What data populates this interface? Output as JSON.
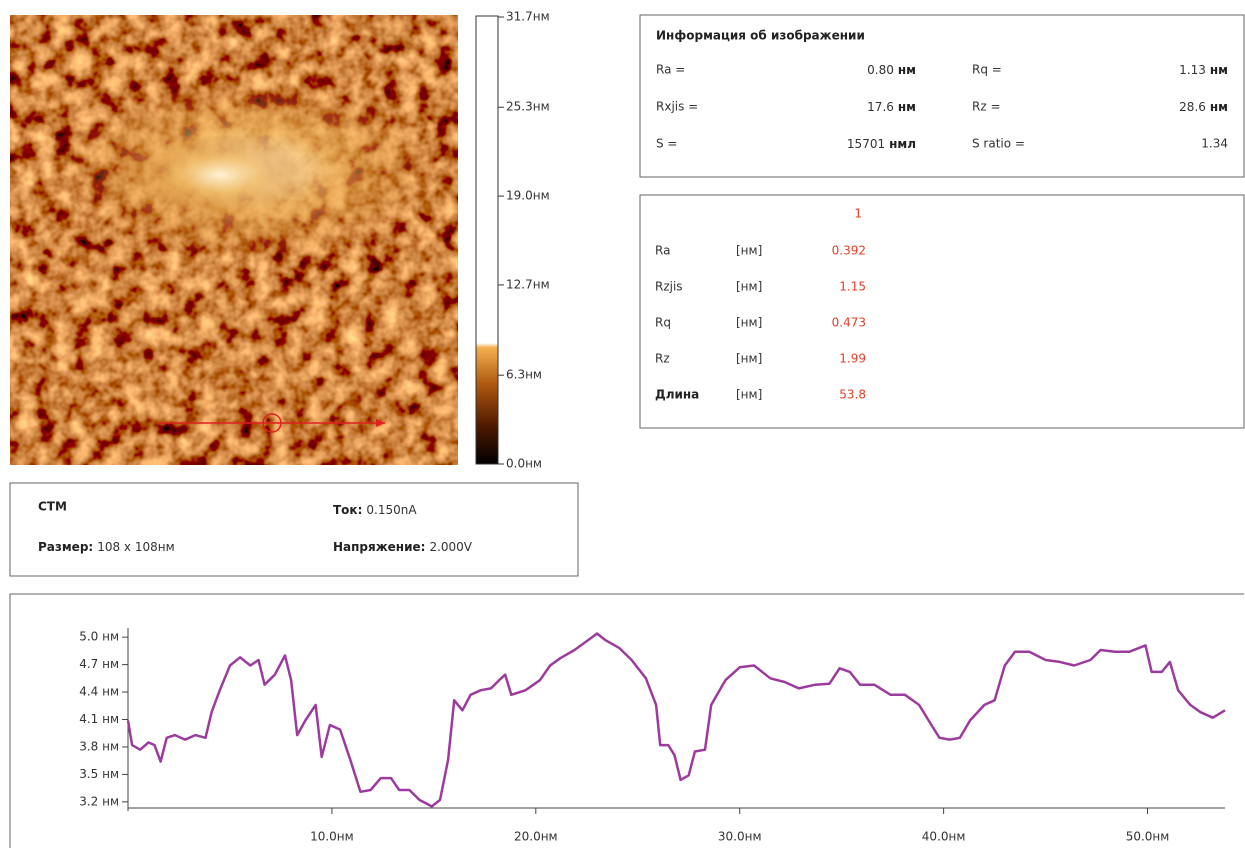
{
  "image_info": {
    "title": "Информация об изображении",
    "rows": [
      [
        {
          "label": "Ra =",
          "value": "0.80",
          "unit": "нм"
        },
        {
          "label": "Rq =",
          "value": "1.13",
          "unit": "нм"
        }
      ],
      [
        {
          "label": "Rxjis =",
          "value": "17.6",
          "unit": "нм"
        },
        {
          "label": "Rz =",
          "value": "28.6",
          "unit": "нм"
        }
      ],
      [
        {
          "label": "S =",
          "value": "15701",
          "unit": "нмл"
        },
        {
          "label": "S ratio =",
          "value": "1.34"
        }
      ]
    ]
  },
  "profile_stats": {
    "column": "1",
    "rows": [
      {
        "name": "Ra",
        "unit": "[нм]",
        "value": "0.392"
      },
      {
        "name": "Rzjis",
        "unit": "[нм]",
        "value": "1.15"
      },
      {
        "name": "Rq",
        "unit": "[нм]",
        "value": "0.473"
      },
      {
        "name": "Rz",
        "unit": "[нм]",
        "value": "1.99"
      },
      {
        "name": "Длина",
        "unit": "[нм]",
        "value": "53.8"
      }
    ]
  },
  "scan_info": {
    "mode": "СТМ",
    "current_label": "Ток:",
    "current": "0.150nA",
    "size_label": "Размер:",
    "size": "108 x 108нм",
    "voltage_label": "Напряжение:",
    "voltage": "2.000V"
  },
  "colorbar": {
    "clim": [
      0,
      31.7
    ],
    "ticks": [
      {
        "value": 31.7,
        "label": "31.7нм"
      },
      {
        "value": 25.3,
        "label": "25.3нм"
      },
      {
        "value": 19.0,
        "label": "19.0нм"
      },
      {
        "value": 12.7,
        "label": "12.7нм"
      },
      {
        "value": 6.3,
        "label": "6.3нм"
      },
      {
        "value": 0,
        "label": "0.0нм"
      }
    ]
  },
  "chart_data": {
    "type": "line",
    "color": "#9c3b9e",
    "xlim": [
      0,
      53.8
    ],
    "ylim": [
      3.1,
      5.1
    ],
    "xticks": [
      {
        "value": 10,
        "label": "10.0нм"
      },
      {
        "value": 20,
        "label": "20.0нм"
      },
      {
        "value": 30,
        "label": "30.0нм"
      },
      {
        "value": 40,
        "label": "40.0нм"
      },
      {
        "value": 50,
        "label": "50.0нм"
      }
    ],
    "yticks": [
      {
        "value": 5,
        "label": "5.0 нм"
      },
      {
        "value": 4.7,
        "label": "4.7 нм"
      },
      {
        "value": 4.4,
        "label": "4.4 нм"
      },
      {
        "value": 4.1,
        "label": "4.1 нм"
      },
      {
        "value": 3.8,
        "label": "3.8 нм"
      },
      {
        "value": 3.5,
        "label": "3.5 нм"
      },
      {
        "value": 3.2,
        "label": "3.2 нм"
      }
    ],
    "x": [
      0,
      0.2,
      0.6,
      1.0,
      1.3,
      1.6,
      1.9,
      2.3,
      2.8,
      3.3,
      3.8,
      4.1,
      4.5,
      5.0,
      5.5,
      6.0,
      6.4,
      6.7,
      7.2,
      7.7,
      8.0,
      8.3,
      8.7,
      9.2,
      9.5,
      9.9,
      10.4,
      10.9,
      11.4,
      11.9,
      12.4,
      12.9,
      13.3,
      13.8,
      14.3,
      14.9,
      15.3,
      15.7,
      16.0,
      16.4,
      16.8,
      17.3,
      17.8,
      18.2,
      18.5,
      18.8,
      19.5,
      20.2,
      20.7,
      21.2,
      21.9,
      22.7,
      23.0,
      23.4,
      24.1,
      24.7,
      25.4,
      25.9,
      26.1,
      26.5,
      26.8,
      27.1,
      27.5,
      27.8,
      28.3,
      28.6,
      29.3,
      30.0,
      30.7,
      31.5,
      32.2,
      32.9,
      33.7,
      34.4,
      34.9,
      35.4,
      35.9,
      36.6,
      37.4,
      38.1,
      38.8,
      39.4,
      39.8,
      40.3,
      40.8,
      41.3,
      42.0,
      42.5,
      43.0,
      43.5,
      44.2,
      45.0,
      45.7,
      46.4,
      47.2,
      47.7,
      48.4,
      49.1,
      49.9,
      50.2,
      50.7,
      51.1,
      51.5,
      52.1,
      52.6,
      53.2,
      53.8
    ],
    "values": [
      4.09,
      3.82,
      3.77,
      3.85,
      3.82,
      3.64,
      3.9,
      3.93,
      3.88,
      3.93,
      3.9,
      4.18,
      4.42,
      4.69,
      4.78,
      4.69,
      4.75,
      4.48,
      4.59,
      4.8,
      4.53,
      3.93,
      4.09,
      4.26,
      3.69,
      4.04,
      3.99,
      3.66,
      3.31,
      3.33,
      3.46,
      3.46,
      3.33,
      3.33,
      3.22,
      3.15,
      3.22,
      3.66,
      4.31,
      4.2,
      4.37,
      4.42,
      4.44,
      4.53,
      4.59,
      4.37,
      4.42,
      4.53,
      4.69,
      4.77,
      4.86,
      4.99,
      5.04,
      4.97,
      4.88,
      4.75,
      4.55,
      4.26,
      3.82,
      3.82,
      3.71,
      3.44,
      3.49,
      3.75,
      3.77,
      4.26,
      4.53,
      4.67,
      4.69,
      4.55,
      4.51,
      4.44,
      4.48,
      4.49,
      4.66,
      4.62,
      4.48,
      4.48,
      4.37,
      4.37,
      4.26,
      4.04,
      3.9,
      3.88,
      3.9,
      4.09,
      4.26,
      4.31,
      4.69,
      4.84,
      4.84,
      4.75,
      4.73,
      4.69,
      4.75,
      4.86,
      4.84,
      4.84,
      4.91,
      4.62,
      4.62,
      4.73,
      4.42,
      4.26,
      4.18,
      4.12,
      4.2
    ]
  }
}
